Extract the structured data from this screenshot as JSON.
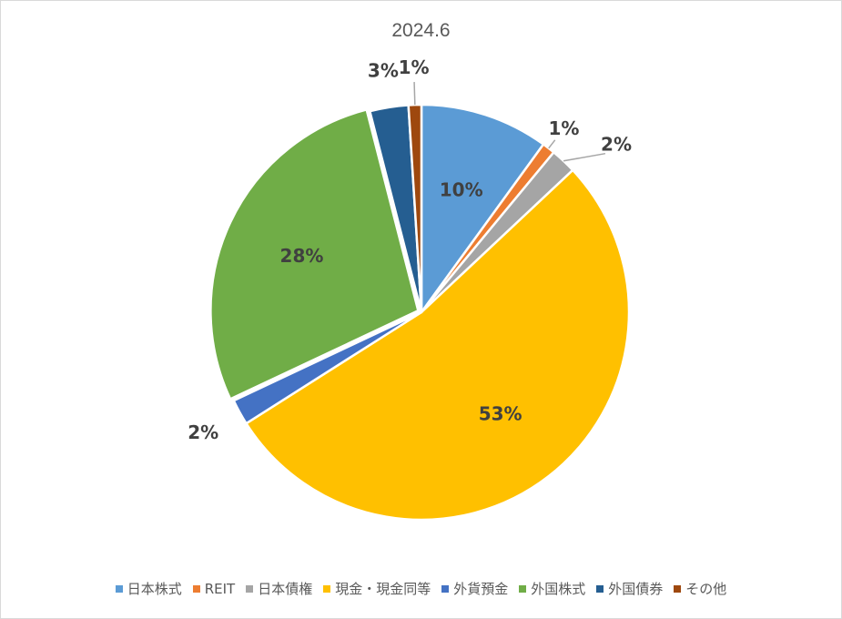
{
  "chart_data": {
    "type": "pie",
    "title": "2024.6",
    "categories": [
      "日本株式",
      "REIT",
      "日本債権",
      "現金・現金同等",
      "外貨預金",
      "外国株式",
      "外国債券",
      "その他"
    ],
    "values": [
      10,
      1,
      2,
      53,
      2,
      28,
      3,
      1
    ],
    "data_labels": [
      "10%",
      "1%",
      "2%",
      "53%",
      "2%",
      "28%",
      "3%",
      "1%"
    ],
    "colors": [
      "#5b9bd5",
      "#ed7d31",
      "#a5a5a5",
      "#ffc000",
      "#4472c4",
      "#70ad47",
      "#255e91",
      "#9e480e"
    ],
    "legend_position": "bottom",
    "exploded_slice": "外国株式"
  }
}
